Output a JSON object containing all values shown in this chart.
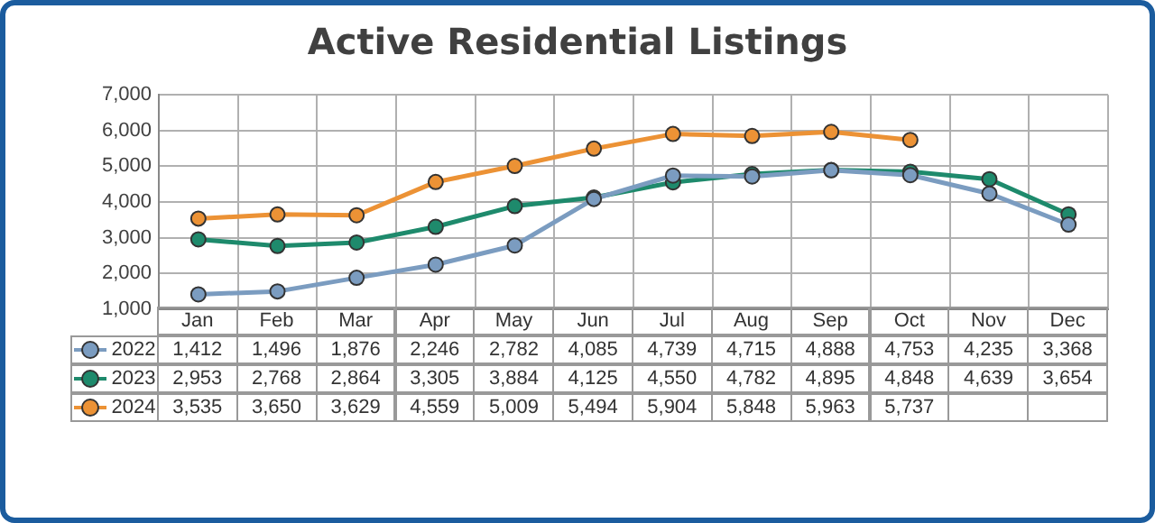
{
  "chart_data": {
    "type": "line",
    "title": "Active Residential Listings",
    "categories": [
      "Jan",
      "Feb",
      "Mar",
      "Apr",
      "May",
      "Jun",
      "Jul",
      "Aug",
      "Sep",
      "Oct",
      "Nov",
      "Dec"
    ],
    "series": [
      {
        "name": "2022",
        "color": "#7b9cc0",
        "values": [
          1412,
          1496,
          1876,
          2246,
          2782,
          4085,
          4739,
          4715,
          4888,
          4753,
          4235,
          3368
        ],
        "value_labels": [
          "1,412",
          "1,496",
          "1,876",
          "2,246",
          "2,782",
          "4,085",
          "4,739",
          "4,715",
          "4,888",
          "4,753",
          "4,235",
          "3,368"
        ]
      },
      {
        "name": "2023",
        "color": "#1e8a6c",
        "values": [
          2953,
          2768,
          2864,
          3305,
          3884,
          4125,
          4550,
          4782,
          4895,
          4848,
          4639,
          3654
        ],
        "value_labels": [
          "2,953",
          "2,768",
          "2,864",
          "3,305",
          "3,884",
          "4,125",
          "4,550",
          "4,782",
          "4,895",
          "4,848",
          "4,639",
          "3,654"
        ]
      },
      {
        "name": "2024",
        "color": "#ec9235",
        "values": [
          3535,
          3650,
          3629,
          4559,
          5009,
          5494,
          5904,
          5848,
          5963,
          5737,
          null,
          null
        ],
        "value_labels": [
          "3,535",
          "3,650",
          "3,629",
          "4,559",
          "5,009",
          "5,494",
          "5,904",
          "5,848",
          "5,963",
          "5,737",
          null,
          null
        ]
      }
    ],
    "ylim": [
      1000,
      7000
    ],
    "yticks": [
      {
        "value": 1000,
        "label": "1,000"
      },
      {
        "value": 2000,
        "label": "2,000"
      },
      {
        "value": 3000,
        "label": "3,000"
      },
      {
        "value": 4000,
        "label": "4,000"
      },
      {
        "value": 5000,
        "label": "5,000"
      },
      {
        "value": 6000,
        "label": "6,000"
      },
      {
        "value": 7000,
        "label": "7,000"
      }
    ],
    "grid": true,
    "legend": "bottom",
    "marker": "circle",
    "line_style": "solid"
  }
}
